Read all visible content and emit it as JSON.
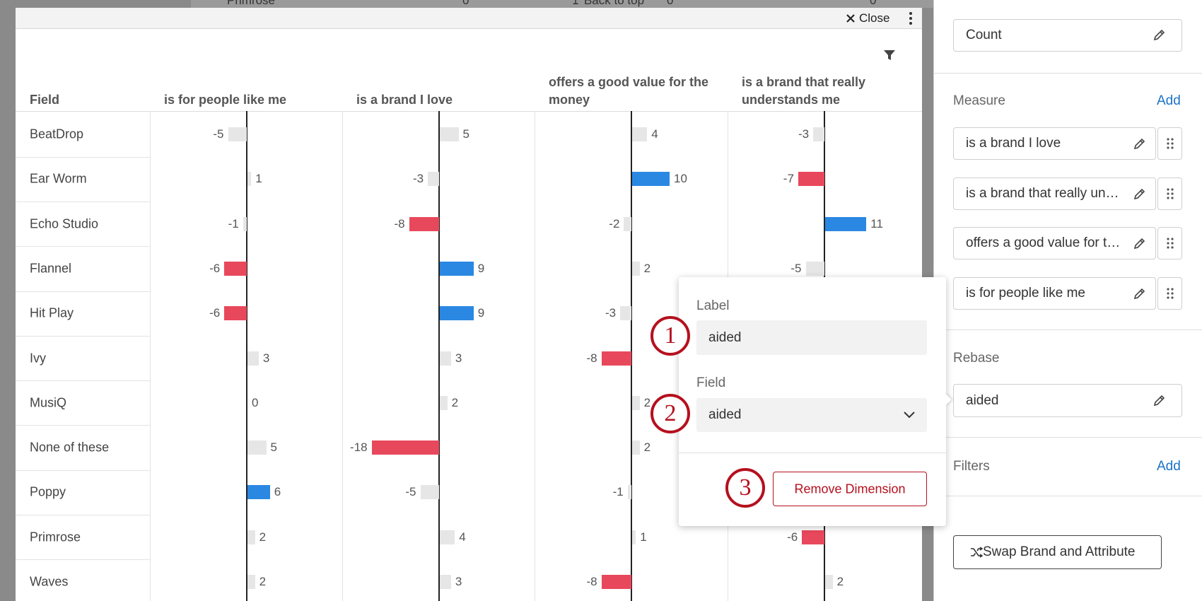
{
  "background": {
    "fragments": [
      "Primrose",
      "0",
      "↥ Back to top",
      "0",
      "0"
    ]
  },
  "modal": {
    "close": "Close",
    "table": {
      "header": [
        "Field",
        "is for people like me",
        "is a brand I love",
        "offers a good value for the money",
        "is a brand that really understands me"
      ],
      "rows": [
        {
          "field": "BeatDrop",
          "values": [
            -5,
            5,
            4,
            -3
          ],
          "colors": [
            "#e6e6e6",
            "#e6e6e6",
            "#e6e6e6",
            "#e6e6e6"
          ]
        },
        {
          "field": "Ear Worm",
          "values": [
            1,
            -3,
            10,
            -7
          ],
          "colors": [
            "#e6e6e6",
            "#e6e6e6",
            "#2a88e2",
            "#e8485b"
          ]
        },
        {
          "field": "Echo Studio",
          "values": [
            -1,
            -8,
            -2,
            11
          ],
          "colors": [
            "#e6e6e6",
            "#e8485b",
            "#e6e6e6",
            "#2a88e2"
          ]
        },
        {
          "field": "Flannel",
          "values": [
            -6,
            9,
            2,
            -5
          ],
          "colors": [
            "#e8485b",
            "#2a88e2",
            "#e6e6e6",
            "#e6e6e6"
          ]
        },
        {
          "field": "Hit Play",
          "values": [
            -6,
            9,
            -3,
            null
          ],
          "colors": [
            "#e8485b",
            "#2a88e2",
            "#e6e6e6",
            null
          ]
        },
        {
          "field": "Ivy",
          "values": [
            3,
            3,
            -8,
            null
          ],
          "colors": [
            "#e6e6e6",
            "#e6e6e6",
            "#e8485b",
            null
          ]
        },
        {
          "field": "MusiQ",
          "values": [
            0,
            2,
            2,
            null
          ],
          "colors": [
            "#e6e6e6",
            "#e6e6e6",
            "#e6e6e6",
            null
          ]
        },
        {
          "field": "None of these",
          "values": [
            5,
            -18,
            2,
            null
          ],
          "colors": [
            "#e6e6e6",
            "#e8485b",
            "#e6e6e6",
            null
          ]
        },
        {
          "field": "Poppy",
          "values": [
            6,
            -5,
            -1,
            null
          ],
          "colors": [
            "#2a88e2",
            "#e6e6e6",
            "#e6e6e6",
            null
          ]
        },
        {
          "field": "Primrose",
          "values": [
            2,
            4,
            1,
            -6
          ],
          "colors": [
            "#e6e6e6",
            "#e6e6e6",
            "#e6e6e6",
            "#e8485b"
          ]
        },
        {
          "field": "Waves",
          "values": [
            2,
            3,
            -8,
            2
          ],
          "colors": [
            "#e6e6e6",
            "#e6e6e6",
            "#e8485b",
            "#e6e6e6"
          ]
        }
      ]
    }
  },
  "popup": {
    "label_title": "Label",
    "label_value": "aided",
    "field_title": "Field",
    "field_value": "aided",
    "remove_button": "Remove Dimension",
    "steps": [
      "1",
      "2",
      "3"
    ]
  },
  "panel": {
    "count": "Count",
    "measure_title": "Measure",
    "measure_add": "Add",
    "measures": [
      "is a brand I love",
      "is a brand that really un…",
      "offers a good value for t…",
      "is for people like me"
    ],
    "rebase_title": "Rebase",
    "rebase_value": "aided",
    "filters_title": "Filters",
    "filters_add": "Add",
    "swap_button": "Swap Brand and Attribute"
  }
}
